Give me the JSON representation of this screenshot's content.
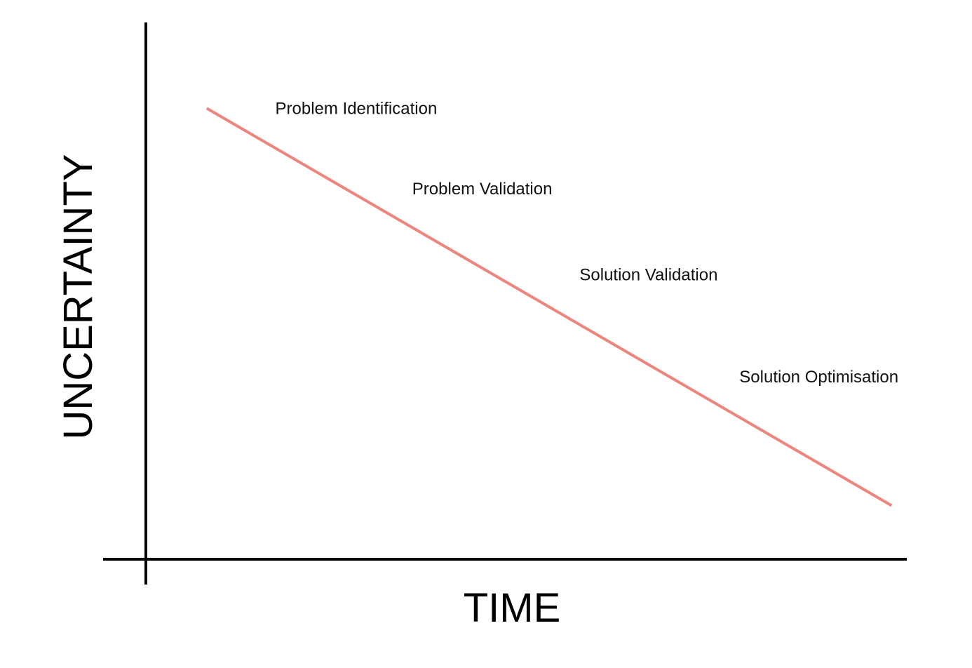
{
  "chart_data": {
    "type": "line",
    "title": "",
    "xlabel": "TIME",
    "ylabel": "UNCERTAINTY",
    "grid": false,
    "legend": "none",
    "line_color": "#ee857d",
    "axis_color": "#000000",
    "series": [
      {
        "x": [
          0.08,
          0.98
        ],
        "y": [
          0.84,
          0.1
        ]
      }
    ],
    "annotations": [
      {
        "text": "Problem Identification",
        "x": 0.17,
        "y": 0.84
      },
      {
        "text": "Problem Validation",
        "x": 0.35,
        "y": 0.69
      },
      {
        "text": "Solution Validation",
        "x": 0.57,
        "y": 0.53
      },
      {
        "text": "Solution Optimisation",
        "x": 0.78,
        "y": 0.34
      }
    ],
    "xlim": [
      0,
      1
    ],
    "ylim": [
      0,
      1
    ]
  }
}
